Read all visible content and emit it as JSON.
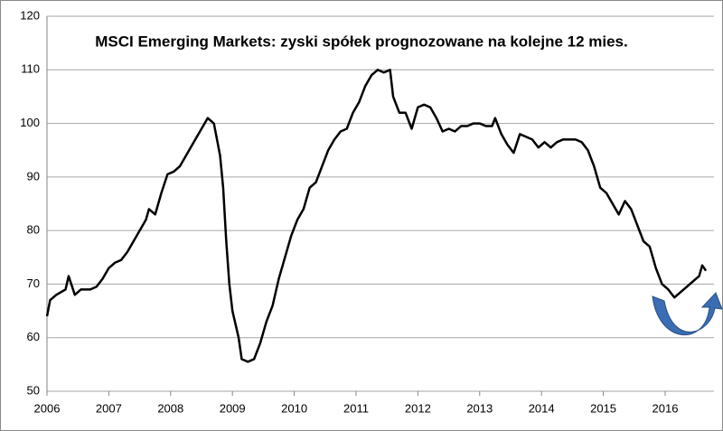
{
  "chart_data": {
    "type": "line",
    "title": "MSCI Emerging Markets: zyski spółek prognozowane na kolejne 12 mies.",
    "x": [
      2006.0,
      2006.05,
      2006.15,
      2006.3,
      2006.35,
      2006.45,
      2006.55,
      2006.7,
      2006.8,
      2006.9,
      2007.0,
      2007.1,
      2007.2,
      2007.3,
      2007.4,
      2007.5,
      2007.6,
      2007.65,
      2007.75,
      2007.85,
      2007.95,
      2008.05,
      2008.15,
      2008.25,
      2008.35,
      2008.45,
      2008.55,
      2008.6,
      2008.7,
      2008.8,
      2008.85,
      2008.9,
      2008.95,
      2009.0,
      2009.1,
      2009.15,
      2009.25,
      2009.35,
      2009.45,
      2009.55,
      2009.65,
      2009.75,
      2009.85,
      2009.95,
      2010.05,
      2010.15,
      2010.25,
      2010.35,
      2010.45,
      2010.55,
      2010.65,
      2010.75,
      2010.85,
      2010.95,
      2011.05,
      2011.15,
      2011.25,
      2011.35,
      2011.45,
      2011.55,
      2011.6,
      2011.7,
      2011.8,
      2011.9,
      2012.0,
      2012.1,
      2012.2,
      2012.3,
      2012.4,
      2012.5,
      2012.6,
      2012.7,
      2012.8,
      2012.9,
      2013.0,
      2013.1,
      2013.2,
      2013.25,
      2013.35,
      2013.45,
      2013.55,
      2013.65,
      2013.75,
      2013.85,
      2013.95,
      2014.05,
      2014.15,
      2014.25,
      2014.35,
      2014.45,
      2014.55,
      2014.65,
      2014.75,
      2014.85,
      2014.95,
      2015.05,
      2015.15,
      2015.25,
      2015.35,
      2015.45,
      2015.55,
      2015.65,
      2015.75,
      2015.85,
      2015.95,
      2016.05,
      2016.15,
      2016.25,
      2016.35,
      2016.45,
      2016.55,
      2016.6,
      2016.66
    ],
    "series": [
      {
        "color": "#000000",
        "values": [
          64,
          67,
          68,
          69,
          71.5,
          68,
          69,
          69,
          69.5,
          71,
          73,
          74,
          74.5,
          76,
          78,
          80,
          82,
          84,
          83,
          87,
          90.5,
          91,
          92,
          94,
          96,
          98,
          100,
          101,
          100,
          94,
          88,
          78,
          70,
          65,
          60,
          56,
          55.5,
          56,
          59,
          63,
          66,
          71,
          75,
          79,
          82,
          84,
          88,
          89,
          92,
          95,
          97,
          98.5,
          99,
          102,
          104,
          107,
          109,
          110,
          109.5,
          110,
          105,
          102,
          102,
          99,
          103,
          103.5,
          103,
          101,
          98.5,
          99,
          98.5,
          99.5,
          99.5,
          100,
          100,
          99.5,
          99.5,
          101,
          98,
          96,
          94.5,
          98,
          97.5,
          97,
          95.5,
          96.5,
          95.5,
          96.5,
          97,
          97,
          97,
          96.5,
          95,
          92,
          88,
          87,
          85,
          83,
          85.5,
          84,
          81,
          78,
          77,
          73,
          70,
          69,
          67.5,
          68.5,
          69.5,
          70.5,
          71.5,
          73.5,
          72.5
        ]
      }
    ],
    "xlim": [
      2006,
      2016.79
    ],
    "xticks": [
      2006,
      2007,
      2008,
      2009,
      2010,
      2011,
      2012,
      2013,
      2014,
      2015,
      2016
    ],
    "ylim": [
      50,
      120
    ],
    "yticks": [
      50,
      60,
      70,
      80,
      90,
      100,
      110,
      120
    ],
    "grid": true
  }
}
